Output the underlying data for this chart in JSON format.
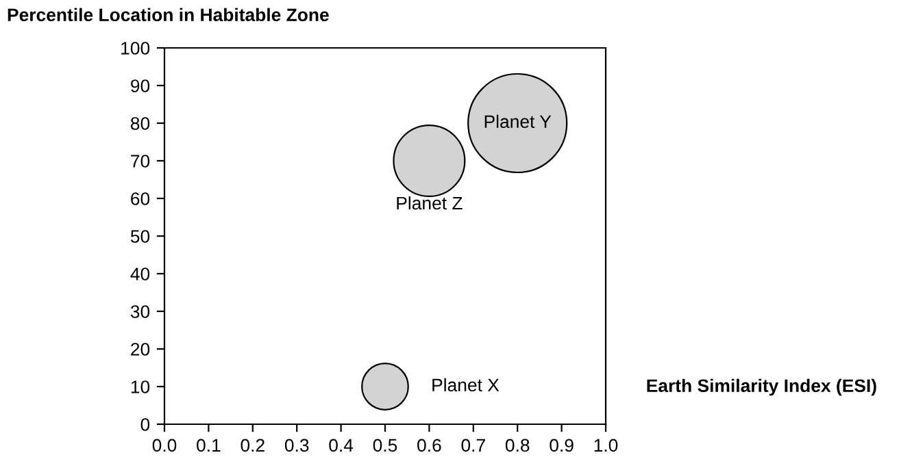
{
  "chart_data": {
    "type": "bubble",
    "ylabel": "Percentile Location in Habitable Zone",
    "xlabel": "Earth Similarity Index (ESI)",
    "series": [
      {
        "name": "Planet X",
        "color": "#d3d3d3",
        "x": [
          0.5
        ],
        "values": [
          10
        ],
        "sizes": [
          0.22
        ]
      },
      {
        "name": "Planet Y",
        "color": "#d3d3d3",
        "x": [
          0.8
        ],
        "values": [
          80
        ],
        "sizes": [
          1
        ]
      },
      {
        "name": "Planet Z",
        "color": "#d3d3d3",
        "x": [
          0.6
        ],
        "values": [
          70
        ],
        "sizes": [
          0.52
        ]
      }
    ],
    "xlim": [
      0,
      1
    ],
    "xticks": [
      {
        "value": 0,
        "label": "0.0"
      },
      {
        "value": 0.1,
        "label": "0.1"
      },
      {
        "value": 0.2,
        "label": "0.2"
      },
      {
        "value": 0.3,
        "label": "0.3"
      },
      {
        "value": 0.4,
        "label": "0.4"
      },
      {
        "value": 0.5,
        "label": "0.5"
      },
      {
        "value": 0.6,
        "label": "0.6"
      },
      {
        "value": 0.7,
        "label": "0.7"
      },
      {
        "value": 0.8,
        "label": "0.8"
      },
      {
        "value": 0.9,
        "label": "0.9"
      },
      {
        "value": 1,
        "label": "1.0"
      }
    ],
    "ylim": [
      0,
      100
    ],
    "yticks": [
      0,
      10,
      20,
      30,
      40,
      50,
      60,
      70,
      80,
      90,
      100
    ],
    "grid": false,
    "legend": false
  }
}
